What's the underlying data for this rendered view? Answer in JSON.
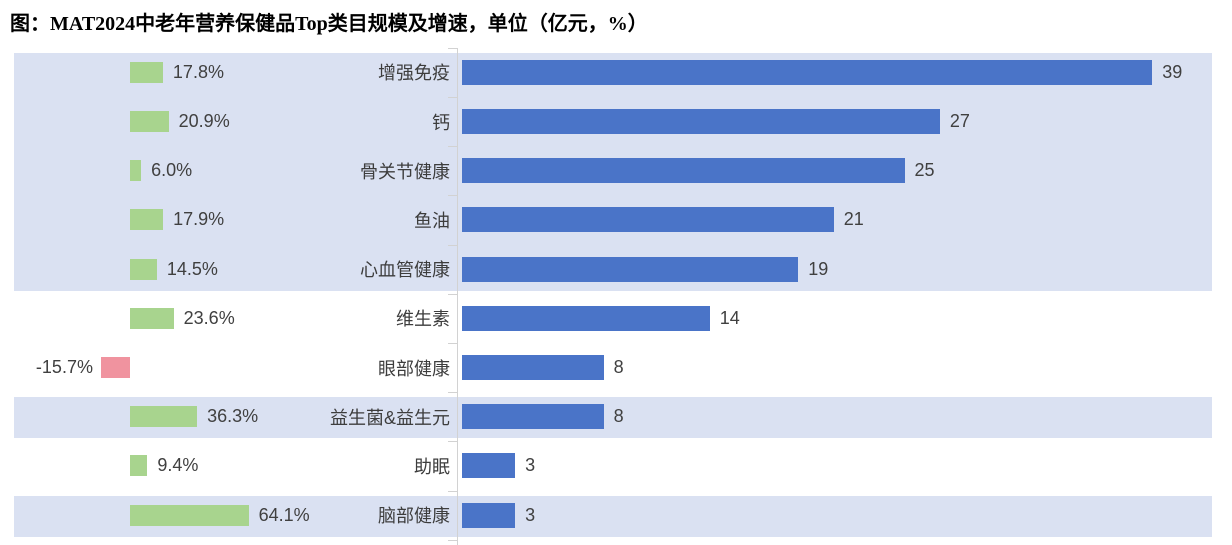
{
  "title": "图：MAT2024中老年营养保健品Top类目规模及增速，单位（亿元，%）",
  "colors": {
    "scale_bar_blue": "#4a74c8",
    "positive_growth_green": "#a8d48e",
    "negative_growth_pink": "#f0939f",
    "row_band_lavender": "#dae1f2",
    "axis_gray": "#d2d2d2",
    "label_text": "#404040",
    "title_text": "#000000"
  },
  "chart_data": {
    "type": "bar",
    "orientation": "horizontal-diverging",
    "title": "图：MAT2024中老年营养保健品Top类目规模及增速",
    "units": {
      "scale": "亿元",
      "growth": "%"
    },
    "legend_visible": false,
    "grid": false,
    "categories": [
      "增强免疫",
      "钙",
      "骨关节健康",
      "鱼油",
      "心血管健康",
      "维生素",
      "眼部健康",
      "益生菌&益生元",
      "助眠",
      "脑部健康"
    ],
    "series": [
      {
        "name": "规模（亿元）",
        "values": [
          39,
          27,
          25,
          21,
          19,
          14,
          8,
          8,
          3,
          3
        ]
      },
      {
        "name": "增速（%）",
        "values": [
          17.8,
          20.9,
          6.0,
          17.9,
          14.5,
          23.6,
          -15.7,
          36.3,
          9.4,
          64.1
        ]
      }
    ],
    "rows": [
      {
        "category": "增强免疫",
        "growth": 17.8,
        "growth_label": "17.8%",
        "value": 39,
        "value_label": "39",
        "shaded": true
      },
      {
        "category": "钙",
        "growth": 20.9,
        "growth_label": "20.9%",
        "value": 27,
        "value_label": "27",
        "shaded": true
      },
      {
        "category": "骨关节健康",
        "growth": 6.0,
        "growth_label": "6.0%",
        "value": 25,
        "value_label": "25",
        "shaded": true
      },
      {
        "category": "鱼油",
        "growth": 17.9,
        "growth_label": "17.9%",
        "value": 21,
        "value_label": "21",
        "shaded": true
      },
      {
        "category": "心血管健康",
        "growth": 14.5,
        "growth_label": "14.5%",
        "value": 19,
        "value_label": "19",
        "shaded": true
      },
      {
        "category": "维生素",
        "growth": 23.6,
        "growth_label": "23.6%",
        "value": 14,
        "value_label": "14",
        "shaded": false
      },
      {
        "category": "眼部健康",
        "growth": -15.7,
        "growth_label": "-15.7%",
        "value": 8,
        "value_label": "8",
        "shaded": false
      },
      {
        "category": "益生菌&益生元",
        "growth": 36.3,
        "growth_label": "36.3%",
        "value": 8,
        "value_label": "8",
        "shaded": true
      },
      {
        "category": "助眠",
        "growth": 9.4,
        "growth_label": "9.4%",
        "value": 3,
        "value_label": "3",
        "shaded": false
      },
      {
        "category": "脑部健康",
        "growth": 64.1,
        "growth_label": "64.1%",
        "value": 3,
        "value_label": "3",
        "shaded": true
      }
    ]
  }
}
